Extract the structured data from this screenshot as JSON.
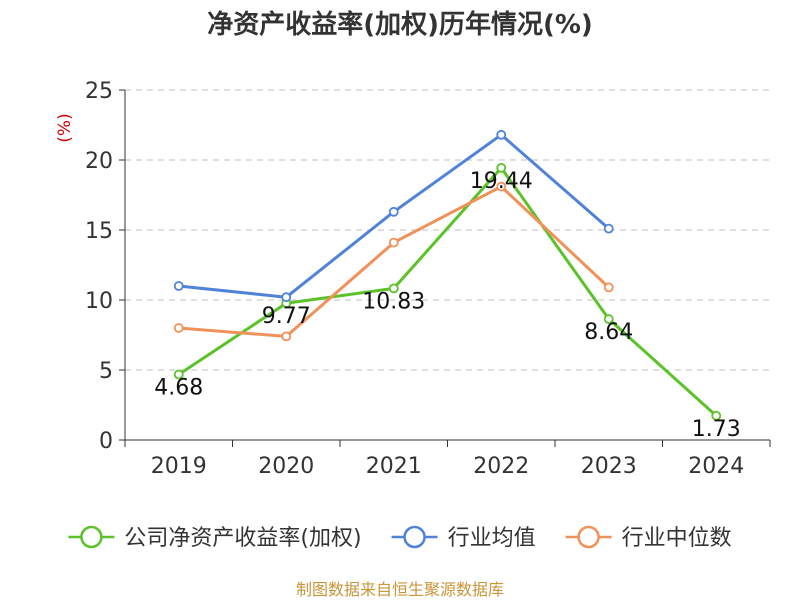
{
  "chart_data": {
    "type": "line",
    "title": "净资产收益率(加权)历年情况(%)",
    "y_unit": "(%)",
    "categories": [
      "2019",
      "2020",
      "2021",
      "2022",
      "2023",
      "2024"
    ],
    "ylim": [
      0,
      25
    ],
    "yticks": [
      "0",
      "5",
      "10",
      "15",
      "20",
      "25"
    ],
    "grid": "horizontal dashed",
    "legend_position": "bottom",
    "series": [
      {
        "name": "公司净资产收益率(加权)",
        "color": "#5cc229",
        "values": [
          4.68,
          9.77,
          10.83,
          19.44,
          8.64,
          1.73
        ],
        "labels": [
          "4.68",
          "9.77",
          "10.83",
          "19.44",
          "8.64",
          "1.73"
        ]
      },
      {
        "name": "行业均值",
        "color": "#4f82d9",
        "values": [
          11.0,
          10.2,
          16.3,
          21.8,
          15.1,
          null
        ]
      },
      {
        "name": "行业中位数",
        "color": "#f0915a",
        "values": [
          8.0,
          7.4,
          14.1,
          18.1,
          10.9,
          null
        ]
      }
    ]
  },
  "source": "制图数据来自恒生聚源数据库"
}
